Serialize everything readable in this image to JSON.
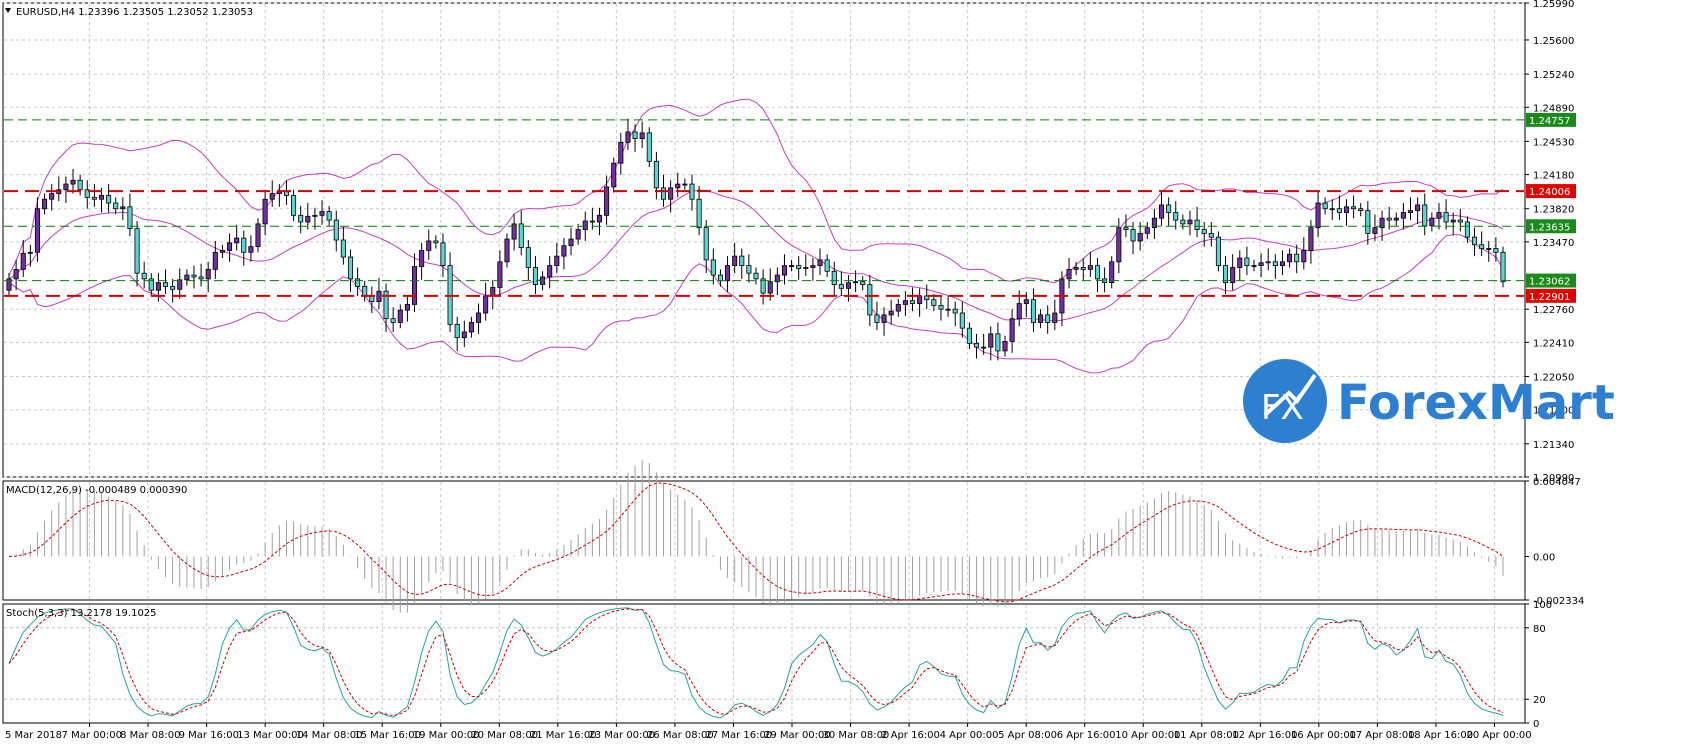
{
  "main_label": "EURUSD,H4  1.23396 1.23505 1.23052 1.23053",
  "macd_label": "MACD(12,26,9) -0.000489 0.000390",
  "stoch_label": "Stoch(5,3,3) 13.2178 19.1025",
  "brand": {
    "name": "ForexMart",
    "logo_letters": "FX",
    "color": "#2f7fd0"
  },
  "chart_data": [
    {
      "type": "candlestick",
      "symbol": "EURUSD",
      "timeframe": "H4",
      "ohlc_label": "1.23396 1.23505 1.23052 1.23053",
      "y_ticks": [
        "1.25990",
        "1.25600",
        "1.25240",
        "1.24890",
        "1.24530",
        "1.24180",
        "1.23820",
        "1.23470",
        "1.22760",
        "1.22410",
        "1.22050",
        "1.21700",
        "1.21340",
        "1.20990"
      ],
      "ylim": [
        1.2099,
        1.2599
      ],
      "x_ticks": [
        "5 Mar 2018",
        "7 Mar 00:00",
        "8 Mar 08:00",
        "9 Mar 16:00",
        "13 Mar 00:00",
        "14 Mar 08:00",
        "15 Mar 16:00",
        "19 Mar 00:00",
        "20 Mar 08:00",
        "21 Mar 16:00",
        "23 Mar 00:00",
        "26 Mar 08:00",
        "27 Mar 16:00",
        "29 Mar 00:00",
        "30 Mar 08:00",
        "2 Apr 16:00",
        "4 Apr 00:00",
        "5 Apr 08:00",
        "6 Apr 16:00",
        "10 Apr 00:00",
        "11 Apr 08:00",
        "12 Apr 16:00",
        "16 Apr 00:00",
        "17 Apr 08:00",
        "18 Apr 16:00",
        "20 Apr 00:00"
      ],
      "levels": [
        {
          "value": 1.24757,
          "label": "1.24757",
          "style": "green dashed"
        },
        {
          "value": 1.24006,
          "label": "1.24006",
          "style": "red dashed"
        },
        {
          "value": 1.23635,
          "label": "1.23635",
          "style": "green dashed"
        },
        {
          "value": 1.23062,
          "label": "1.23062",
          "style": "green dashed"
        },
        {
          "value": 1.22901,
          "label": "1.22901",
          "style": "red dashed"
        }
      ],
      "colors": {
        "bull": "#7030a0",
        "bear": "#5fd3d3",
        "bands": "#c040c0",
        "support": "#d00000",
        "resistance": "#008000"
      },
      "closes": [
        1.2308,
        1.2318,
        1.2335,
        1.2336,
        1.2382,
        1.2392,
        1.2398,
        1.2402,
        1.2408,
        1.2412,
        1.2402,
        1.2394,
        1.2392,
        1.2396,
        1.2388,
        1.2382,
        1.2384,
        1.2361,
        1.2314,
        1.2308,
        1.2296,
        1.2304,
        1.23,
        1.2297,
        1.2307,
        1.2312,
        1.231,
        1.2308,
        1.2318,
        1.2336,
        1.2338,
        1.2346,
        1.2351,
        1.2336,
        1.2342,
        1.2366,
        1.2392,
        1.2398,
        1.24,
        1.2396,
        1.2375,
        1.2368,
        1.2374,
        1.2375,
        1.2379,
        1.237,
        1.2349,
        1.2331,
        1.2308,
        1.23,
        1.229,
        1.2284,
        1.2295,
        1.2266,
        1.2262,
        1.2275,
        1.2281,
        1.2321,
        1.2338,
        1.2348,
        1.2346,
        1.2322,
        1.226,
        1.2246,
        1.2252,
        1.2262,
        1.2272,
        1.229,
        1.2299,
        1.2326,
        1.235,
        1.2366,
        1.2341,
        1.232,
        1.2302,
        1.231,
        1.2322,
        1.2332,
        1.2343,
        1.235,
        1.236,
        1.2369,
        1.2368,
        1.2375,
        1.2405,
        1.243,
        1.2452,
        1.2463,
        1.2456,
        1.2462,
        1.2432,
        1.2404,
        1.2392,
        1.2404,
        1.2408,
        1.2408,
        1.2392,
        1.2362,
        1.2328,
        1.2312,
        1.2306,
        1.2322,
        1.2332,
        1.2322,
        1.2314,
        1.2308,
        1.2293,
        1.2305,
        1.2312,
        1.2322,
        1.2322,
        1.2319,
        1.232,
        1.2322,
        1.2328,
        1.2316,
        1.2302,
        1.2298,
        1.2304,
        1.2305,
        1.2302,
        1.227,
        1.2262,
        1.227,
        1.2274,
        1.2281,
        1.2285,
        1.2282,
        1.229,
        1.2286,
        1.228,
        1.2276,
        1.2276,
        1.2272,
        1.2256,
        1.224,
        1.2236,
        1.2236,
        1.225,
        1.2232,
        1.2242,
        1.2266,
        1.2282,
        1.2286,
        1.2262,
        1.227,
        1.2262,
        1.2272,
        1.2308,
        1.2318,
        1.232,
        1.2318,
        1.2322,
        1.2308,
        1.2304,
        1.2326,
        1.2362,
        1.236,
        1.2348,
        1.2356,
        1.2362,
        1.2372,
        1.2386,
        1.2378,
        1.237,
        1.2366,
        1.237,
        1.236,
        1.2356,
        1.2352,
        1.2322,
        1.2304,
        1.232,
        1.233,
        1.2322,
        1.2322,
        1.2325,
        1.2326,
        1.2322,
        1.2326,
        1.2334,
        1.2326,
        1.2338,
        1.2362,
        1.2388,
        1.2382,
        1.2382,
        1.2378,
        1.2384,
        1.2382,
        1.238,
        1.2356,
        1.2362,
        1.2372,
        1.237,
        1.2372,
        1.2378,
        1.238,
        1.2386,
        1.2364,
        1.2372,
        1.2378,
        1.2368,
        1.237,
        1.2368,
        1.2352,
        1.2344,
        1.234,
        1.234,
        1.2336,
        1.2305
      ]
    },
    {
      "type": "bar+line",
      "name": "MACD(12,26,9)",
      "values_label": "-0.000489 0.000390",
      "y_ticks": [
        "0.004047",
        "0.00",
        "-0.002334"
      ],
      "ylim": [
        -0.002334,
        0.004047
      ]
    },
    {
      "type": "line",
      "name": "Stoch(5,3,3)",
      "values_label": "13.2178 19.1025",
      "y_ticks": [
        "100",
        "80",
        "20",
        "0"
      ],
      "ylim": [
        0,
        100
      ]
    }
  ]
}
